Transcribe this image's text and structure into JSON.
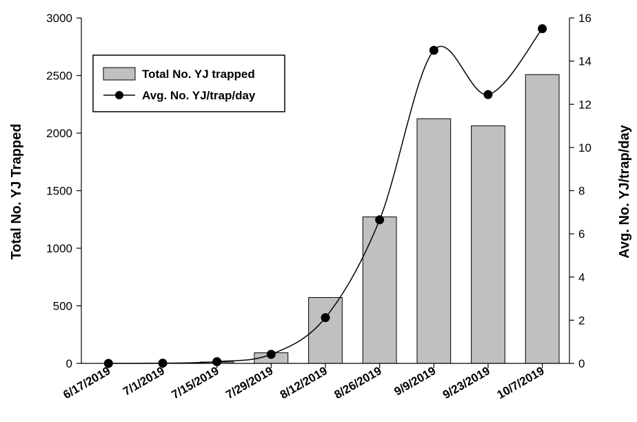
{
  "chart_data": {
    "type": "bar",
    "categories": [
      "6/17/2019",
      "7/1/2019",
      "7/15/2019",
      "7/29/2019",
      "8/12/2019",
      "8/26/2019",
      "9/9/2019",
      "9/23/2019",
      "10/7/2019"
    ],
    "series": [
      {
        "name": "Total No. YJ trapped",
        "type": "bar",
        "axis": "left",
        "color": "#c0c0c0",
        "values": [
          0,
          2,
          12,
          92,
          572,
          1272,
          2125,
          2063,
          2508
        ]
      },
      {
        "name": "Avg. No. YJ/trap/day",
        "type": "line",
        "axis": "right",
        "color": "#000000",
        "marker": "filled-circle",
        "smooth": true,
        "values": [
          0,
          0.01,
          0.08,
          0.42,
          2.12,
          6.65,
          14.5,
          12.45,
          15.5
        ]
      }
    ],
    "ylabel": "Total No. YJ Trapped",
    "y2label": "Avg. No. YJ/trap/day",
    "ylim": [
      0,
      3000
    ],
    "y2lim": [
      0,
      16
    ],
    "yticks": [
      0,
      500,
      1000,
      1500,
      2000,
      2500,
      3000
    ],
    "y2ticks": [
      0,
      2,
      4,
      6,
      8,
      10,
      12,
      14,
      16
    ],
    "legend": {
      "placement": "top-left",
      "entries": [
        "Total No. YJ trapped",
        "Avg. No. YJ/trap/day"
      ]
    },
    "grid": false
  }
}
